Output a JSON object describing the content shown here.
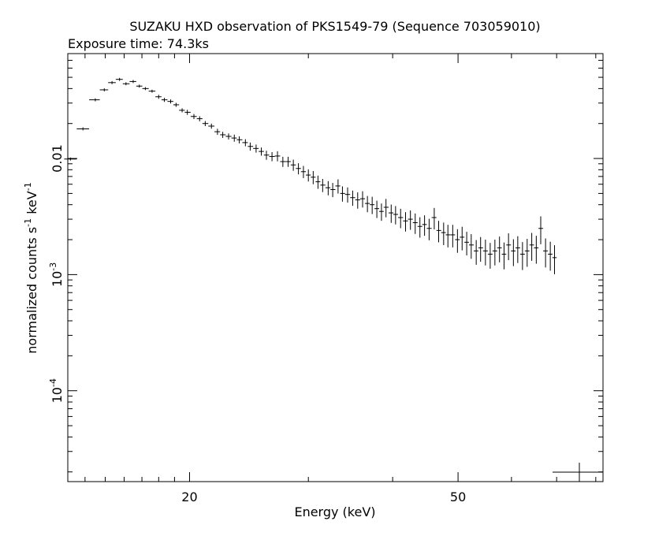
{
  "chart_data": {
    "type": "scatter",
    "title": "SUZAKU HXD observation of PKS1549-79 (Sequence 703059010)",
    "subtitle": "Exposure time: 74.3ks",
    "xlabel": "Energy (keV)",
    "ylabel_main": "normalized counts s",
    "ylabel_mid": " keV",
    "ylabel_exp": "-1",
    "xscale": "log",
    "yscale": "log",
    "xlim": [
      13.2,
      82
    ],
    "ylim": [
      1.65e-05,
      0.08
    ],
    "grid": false,
    "x_ticks": [
      {
        "value": 20,
        "label": "20"
      },
      {
        "value": 50,
        "label": "50"
      }
    ],
    "y_ticks": [
      {
        "value": 0.01,
        "base": "0.01",
        "exp": ""
      },
      {
        "value": 0.001,
        "base": "10",
        "exp": "-3"
      },
      {
        "value": 0.0001,
        "base": "10",
        "exp": "-4"
      }
    ],
    "series": [
      {
        "x": [
          13.32,
          13.9,
          14.5,
          14.95,
          15.35,
          15.75,
          16.1,
          16.5,
          16.85,
          17.2,
          17.6,
          18.0,
          18.35,
          18.75,
          19.1,
          19.5,
          19.85,
          20.3,
          20.7,
          21.1,
          21.55,
          22.0,
          22.4,
          22.85,
          23.3,
          23.7,
          24.2,
          24.6,
          25.1,
          25.55,
          26.0,
          26.5,
          27.0,
          27.5,
          28.0,
          28.5,
          29.0,
          29.5,
          30.0,
          30.5,
          31.0,
          31.5,
          32.1,
          32.6,
          33.2,
          33.7,
          34.3,
          34.9,
          35.5,
          36.1,
          36.7,
          37.3,
          37.9,
          38.5,
          39.1,
          39.8,
          40.4,
          41.1,
          41.8,
          42.5,
          43.2,
          43.9,
          44.6,
          45.3,
          46.1,
          46.8,
          47.6,
          48.3,
          49.1,
          49.9,
          50.7,
          51.5,
          52.3,
          53.2,
          54.0,
          54.9,
          55.8,
          56.7,
          57.6,
          58.5,
          59.4,
          60.4,
          61.3,
          62.3,
          63.3,
          64.3,
          65.3,
          66.3,
          67.4,
          68.5,
          69.5
        ],
        "y": [
          0.0099,
          0.018,
          0.032,
          0.039,
          0.045,
          0.048,
          0.044,
          0.046,
          0.042,
          0.04,
          0.038,
          0.034,
          0.032,
          0.031,
          0.029,
          0.026,
          0.025,
          0.023,
          0.022,
          0.02,
          0.019,
          0.017,
          0.016,
          0.0155,
          0.015,
          0.0145,
          0.0137,
          0.0127,
          0.0122,
          0.0115,
          0.0107,
          0.0104,
          0.0105,
          0.0094,
          0.0094,
          0.0088,
          0.0082,
          0.0077,
          0.0072,
          0.0069,
          0.0063,
          0.0059,
          0.0056,
          0.0054,
          0.0058,
          0.005,
          0.0049,
          0.0046,
          0.0044,
          0.0045,
          0.0041,
          0.004,
          0.0037,
          0.0035,
          0.0038,
          0.0034,
          0.0033,
          0.0031,
          0.0029,
          0.003,
          0.0028,
          0.0026,
          0.0027,
          0.0025,
          0.0031,
          0.0024,
          0.0023,
          0.0022,
          0.0022,
          0.002,
          0.0021,
          0.0019,
          0.0018,
          0.0016,
          0.0017,
          0.0016,
          0.0015,
          0.0016,
          0.0017,
          0.0015,
          0.0018,
          0.0016,
          0.0017,
          0.0015,
          0.0016,
          0.0018,
          0.0017,
          0.0025,
          0.0016,
          0.0015,
          0.0014
        ],
        "yerr_frac": [
          0.03,
          0.03,
          0.03,
          0.03,
          0.03,
          0.03,
          0.03,
          0.03,
          0.03,
          0.03,
          0.03,
          0.04,
          0.04,
          0.04,
          0.04,
          0.04,
          0.05,
          0.05,
          0.05,
          0.05,
          0.05,
          0.06,
          0.06,
          0.06,
          0.07,
          0.07,
          0.07,
          0.08,
          0.08,
          0.08,
          0.09,
          0.09,
          0.1,
          0.1,
          0.1,
          0.11,
          0.11,
          0.12,
          0.12,
          0.13,
          0.13,
          0.13,
          0.14,
          0.14,
          0.14,
          0.15,
          0.15,
          0.15,
          0.16,
          0.16,
          0.16,
          0.17,
          0.17,
          0.17,
          0.18,
          0.18,
          0.18,
          0.19,
          0.19,
          0.19,
          0.2,
          0.2,
          0.2,
          0.21,
          0.21,
          0.21,
          0.22,
          0.22,
          0.22,
          0.23,
          0.23,
          0.23,
          0.24,
          0.24,
          0.24,
          0.25,
          0.25,
          0.25,
          0.25,
          0.26,
          0.26,
          0.26,
          0.26,
          0.27,
          0.27,
          0.27,
          0.27,
          0.27,
          0.28,
          0.28,
          0.28
        ]
      }
    ]
  }
}
